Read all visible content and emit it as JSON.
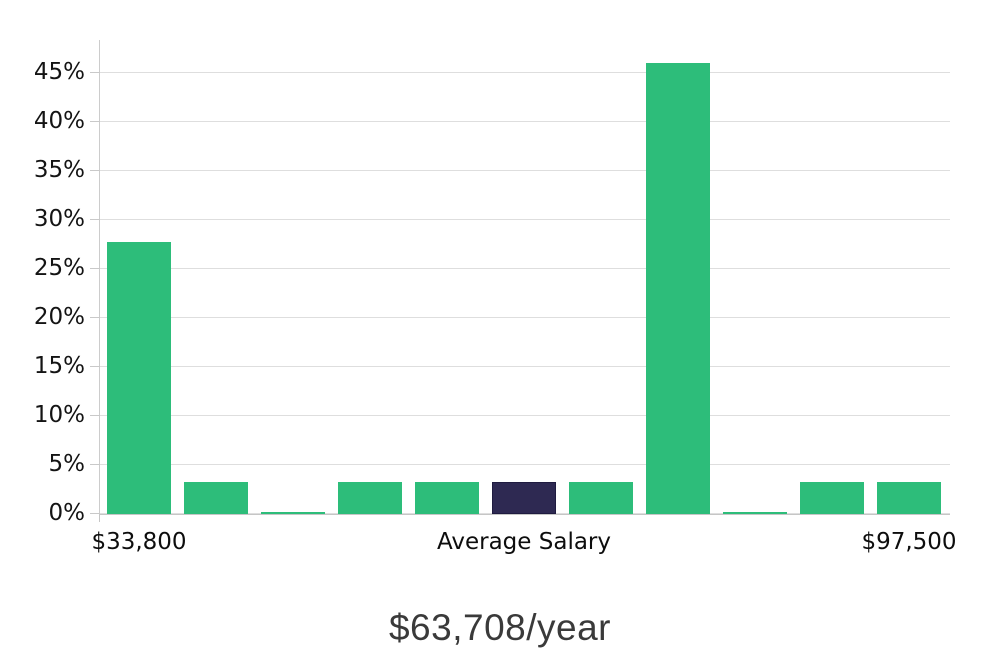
{
  "chart_data": {
    "type": "bar",
    "title": "$63,708/year",
    "values": [
      27.8,
      3.3,
      0.2,
      3.3,
      3.3,
      3.3,
      3.3,
      46.1,
      0.2,
      3.3,
      3.3
    ],
    "highlight_index": 5,
    "bar_color": "#2dbd7a",
    "highlight_color": "#2e2952",
    "highlight_border_color": "#1f1b40",
    "y_ticks": [
      0,
      5,
      10,
      15,
      20,
      25,
      30,
      35,
      40,
      45
    ],
    "y_tick_suffix": "%",
    "ylim": [
      0,
      48.4
    ],
    "x_labels": [
      {
        "text": "$33,800",
        "bar_index": 0
      },
      {
        "text": "Average Salary",
        "bar_index": 5
      },
      {
        "text": "$97,500",
        "bar_index": 10
      }
    ],
    "xlabel": "",
    "ylabel": "",
    "grid": true,
    "legend": "none"
  }
}
